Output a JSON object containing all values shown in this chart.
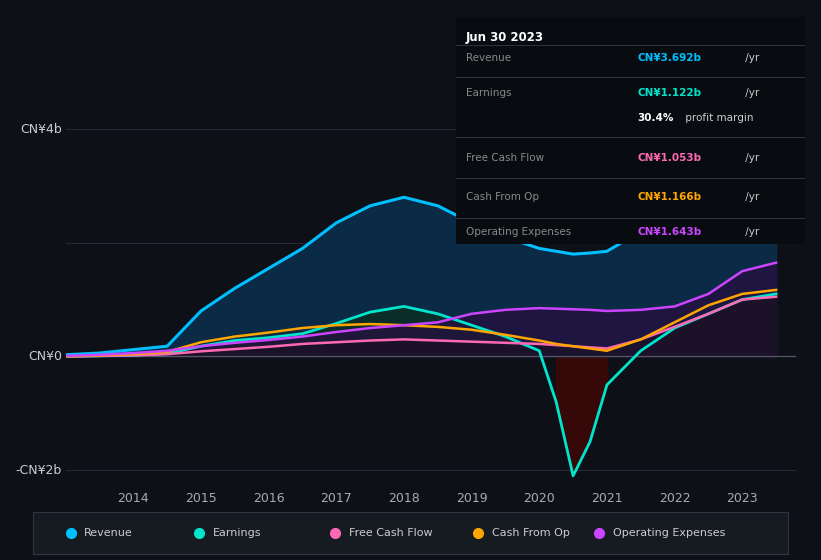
{
  "bg_color": "#0d1117",
  "info_box": {
    "date": "Jun 30 2023",
    "revenue_label": "Revenue",
    "revenue_value": "CN¥3.692b",
    "revenue_color": "#00bfff",
    "earnings_label": "Earnings",
    "earnings_value": "CN¥1.122b",
    "earnings_color": "#00e5cc",
    "margin_value": "30.4%",
    "margin_text": " profit margin",
    "fcf_label": "Free Cash Flow",
    "fcf_value": "CN¥1.053b",
    "fcf_color": "#ff69b4",
    "cashop_label": "Cash From Op",
    "cashop_value": "CN¥1.166b",
    "cashop_color": "#ffa500",
    "opex_label": "Operating Expenses",
    "opex_value": "CN¥1.643b",
    "opex_color": "#cc44ff"
  },
  "legend": [
    {
      "label": "Revenue",
      "color": "#00bfff"
    },
    {
      "label": "Earnings",
      "color": "#00e5cc"
    },
    {
      "label": "Free Cash Flow",
      "color": "#ff69b4"
    },
    {
      "label": "Cash From Op",
      "color": "#ffa500"
    },
    {
      "label": "Operating Expenses",
      "color": "#cc44ff"
    }
  ],
  "x_years": [
    2013.0,
    2013.5,
    2014.0,
    2014.5,
    2015.0,
    2015.5,
    2016.0,
    2016.5,
    2017.0,
    2017.5,
    2018.0,
    2018.5,
    2019.0,
    2019.5,
    2020.0,
    2020.25,
    2020.5,
    2020.75,
    2021.0,
    2021.5,
    2022.0,
    2022.5,
    2023.0,
    2023.5
  ],
  "revenue": [
    0.03,
    0.06,
    0.12,
    0.18,
    0.8,
    1.2,
    1.55,
    1.9,
    2.35,
    2.65,
    2.8,
    2.65,
    2.35,
    2.1,
    1.9,
    1.85,
    1.8,
    1.82,
    1.85,
    2.2,
    2.75,
    3.2,
    3.7,
    3.8
  ],
  "earnings": [
    0.0,
    0.01,
    0.02,
    0.05,
    0.18,
    0.28,
    0.33,
    0.4,
    0.58,
    0.78,
    0.88,
    0.75,
    0.55,
    0.35,
    0.1,
    -0.8,
    -2.1,
    -1.5,
    -0.5,
    0.1,
    0.5,
    0.75,
    1.0,
    1.1
  ],
  "fcf": [
    0.0,
    0.01,
    0.02,
    0.04,
    0.09,
    0.13,
    0.17,
    0.22,
    0.25,
    0.28,
    0.3,
    0.28,
    0.26,
    0.24,
    0.22,
    0.2,
    0.18,
    0.16,
    0.14,
    0.3,
    0.52,
    0.75,
    1.0,
    1.05
  ],
  "cashop": [
    0.0,
    0.02,
    0.04,
    0.08,
    0.25,
    0.35,
    0.42,
    0.5,
    0.55,
    0.57,
    0.55,
    0.52,
    0.47,
    0.38,
    0.28,
    0.22,
    0.18,
    0.14,
    0.1,
    0.3,
    0.6,
    0.9,
    1.1,
    1.17
  ],
  "opex": [
    0.01,
    0.03,
    0.06,
    0.1,
    0.18,
    0.24,
    0.29,
    0.35,
    0.43,
    0.5,
    0.55,
    0.6,
    0.75,
    0.82,
    0.85,
    0.84,
    0.83,
    0.82,
    0.8,
    0.82,
    0.88,
    1.1,
    1.5,
    1.65
  ],
  "ylim": [
    -2.3,
    4.3
  ],
  "xticks": [
    2014,
    2015,
    2016,
    2017,
    2018,
    2019,
    2020,
    2021,
    2022,
    2023
  ],
  "ylabel_top": "CN¥4b",
  "ylabel_zero": "CN¥0",
  "ylabel_neg": "-CN¥2b"
}
